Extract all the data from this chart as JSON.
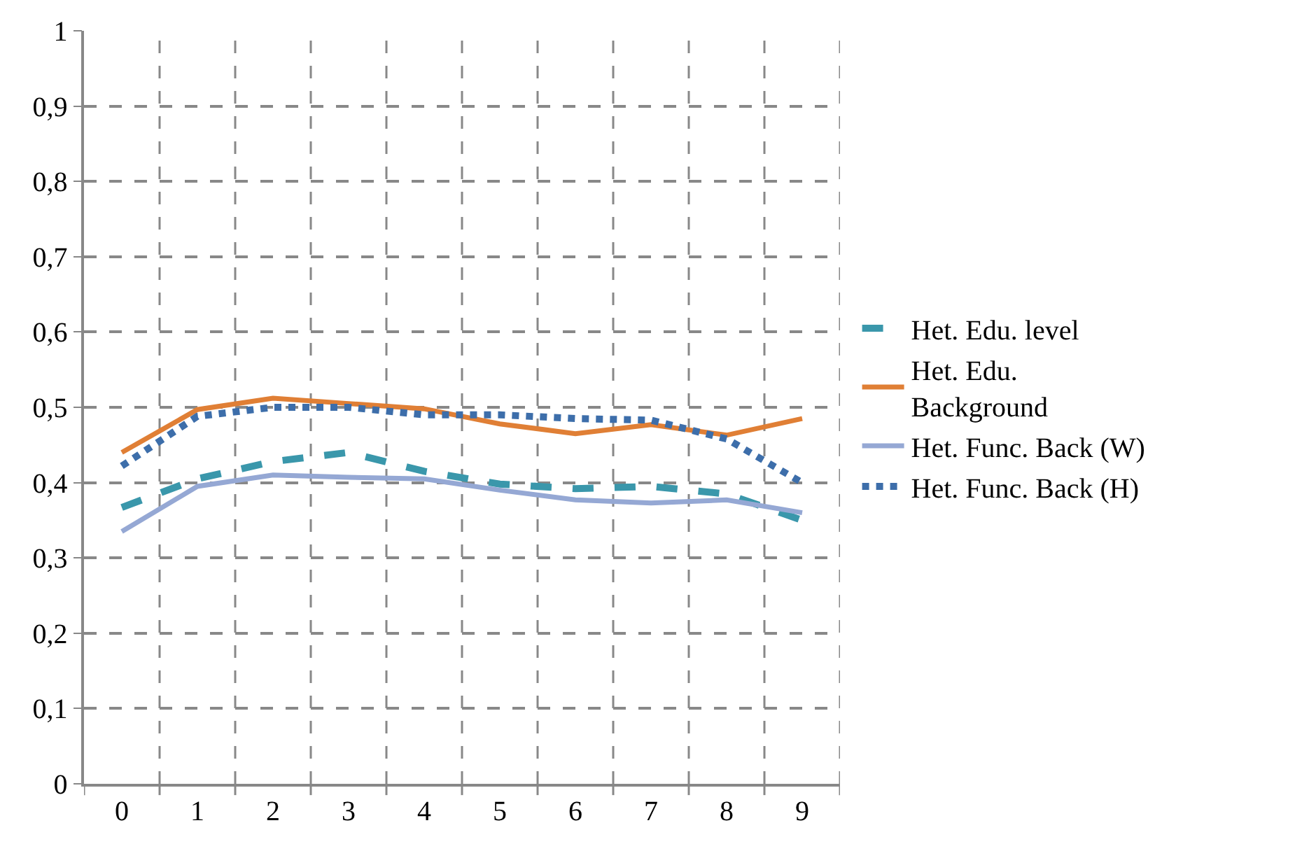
{
  "chart_data": {
    "type": "line",
    "categories": [
      "0",
      "1",
      "2",
      "3",
      "4",
      "5",
      "6",
      "7",
      "8",
      "9"
    ],
    "series": [
      {
        "name": "Het. Edu. level",
        "color": "#3a97ab",
        "line_style": "dashed",
        "values": [
          0.367,
          0.405,
          0.428,
          0.44,
          0.415,
          0.398,
          0.392,
          0.395,
          0.385,
          0.35
        ]
      },
      {
        "name": "Het. Edu. Background",
        "color": "#e07f35",
        "line_style": "solid",
        "values": [
          0.44,
          0.497,
          0.512,
          0.505,
          0.498,
          0.478,
          0.465,
          0.477,
          0.463,
          0.485
        ]
      },
      {
        "name": "Het. Func. Back (W)",
        "color": "#95a8d4",
        "line_style": "solid",
        "values": [
          0.335,
          0.395,
          0.41,
          0.407,
          0.405,
          0.39,
          0.377,
          0.373,
          0.377,
          0.36
        ]
      },
      {
        "name": "Het. Func. Back (H)",
        "color": "#3d6eaa",
        "line_style": "dotted",
        "values": [
          0.422,
          0.488,
          0.5,
          0.5,
          0.49,
          0.49,
          0.485,
          0.483,
          0.458,
          0.4
        ]
      }
    ],
    "ylim": [
      0,
      1
    ],
    "yticks": [
      0,
      {
        "value": 0.1,
        "label": "0,1"
      },
      {
        "value": 0.2,
        "label": "0,2"
      },
      {
        "value": 0.3,
        "label": "0,3"
      },
      {
        "value": 0.4,
        "label": "0,4"
      },
      {
        "value": 0.5,
        "label": "0,5"
      },
      {
        "value": 0.6,
        "label": "0,6"
      },
      {
        "value": 0.7,
        "label": "0,7"
      },
      {
        "value": 0.8,
        "label": "0,8"
      },
      {
        "value": 0.9,
        "label": "0,9"
      },
      1
    ],
    "grid": true,
    "legend": "right",
    "marker": "none"
  }
}
